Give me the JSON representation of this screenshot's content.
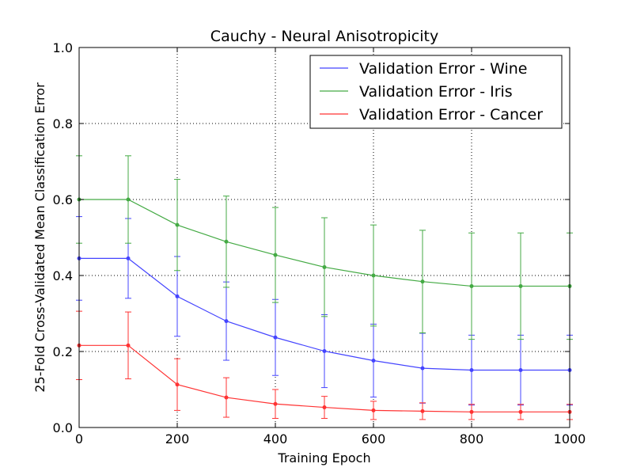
{
  "chart_data": {
    "type": "line",
    "title": "Cauchy - Neural Anisotropicity",
    "xlabel": "Training Epoch",
    "ylabel": "25-Fold Cross-Validated Mean Classification Error",
    "xlim": [
      0,
      1000
    ],
    "ylim": [
      0,
      1.0
    ],
    "x_ticks": [
      "0",
      "200",
      "400",
      "600",
      "800",
      "1000"
    ],
    "y_ticks": [
      "0.0",
      "0.2",
      "0.4",
      "0.6",
      "0.8",
      "1.0"
    ],
    "grid": true,
    "legend_position": "top-right",
    "x": [
      0,
      100,
      200,
      300,
      400,
      500,
      600,
      700,
      800,
      900,
      1000
    ],
    "series": [
      {
        "name": "Validation Error - Wine",
        "color": "#4444ff",
        "values": [
          0.445,
          0.445,
          0.345,
          0.28,
          0.237,
          0.201,
          0.176,
          0.156,
          0.151,
          0.151,
          0.151
        ],
        "err": [
          0.11,
          0.105,
          0.105,
          0.103,
          0.1,
          0.096,
          0.096,
          0.092,
          0.092,
          0.092,
          0.092
        ]
      },
      {
        "name": "Validation Error - Iris",
        "color": "#44aa44",
        "values": [
          0.6,
          0.6,
          0.533,
          0.489,
          0.454,
          0.422,
          0.4,
          0.384,
          0.372,
          0.372,
          0.372
        ],
        "err": [
          0.115,
          0.115,
          0.12,
          0.12,
          0.125,
          0.13,
          0.133,
          0.135,
          0.14,
          0.14,
          0.14
        ]
      },
      {
        "name": "Validation Error - Cancer",
        "color": "#ff3333",
        "values": [
          0.216,
          0.216,
          0.113,
          0.079,
          0.062,
          0.053,
          0.045,
          0.043,
          0.041,
          0.041,
          0.041
        ],
        "err": [
          0.09,
          0.088,
          0.068,
          0.052,
          0.038,
          0.029,
          0.024,
          0.022,
          0.02,
          0.02,
          0.02
        ]
      }
    ]
  }
}
